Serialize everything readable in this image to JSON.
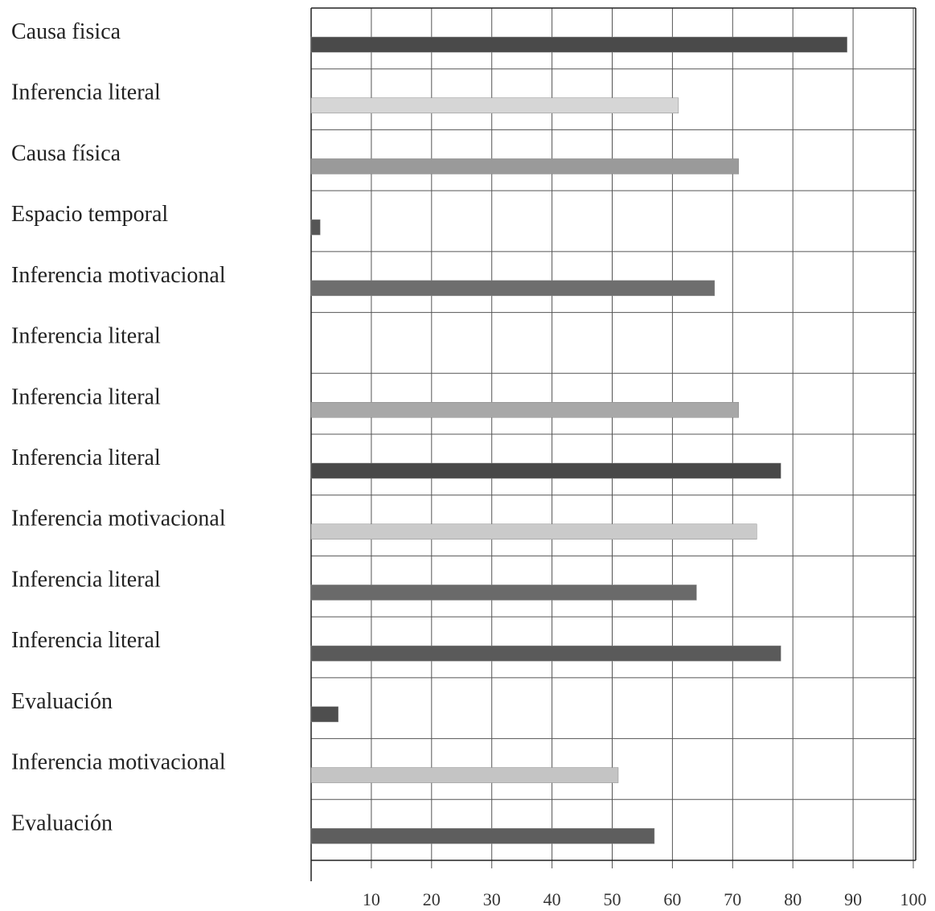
{
  "chart_data": {
    "type": "bar",
    "orientation": "horizontal",
    "title": "",
    "xlabel": "",
    "ylabel": "",
    "xlim": [
      0,
      100
    ],
    "x_ticks": [
      10,
      20,
      30,
      40,
      50,
      60,
      70,
      80,
      90,
      100
    ],
    "grid": true,
    "legend": "none",
    "categories": [
      "Causa fisica",
      "Inferencia literal",
      "Causa física",
      "Espacio temporal",
      "Inferencia motivacional",
      "Inferencia literal",
      "Inferencia literal",
      "Inferencia literal",
      "Inferencia motivacional",
      "Inferencia literal",
      "Inferencia literal",
      "Evaluación",
      "Inferencia motivacional",
      "Evaluación"
    ],
    "values": [
      89,
      61,
      71,
      1.5,
      67,
      0,
      71,
      78,
      74,
      64,
      78,
      4.5,
      51,
      57
    ],
    "bar_colors": [
      "#4a4a4a",
      "#d6d6d6",
      "#9a9a9a",
      "#555555",
      "#6e6e6e",
      "#b0b0b0",
      "#a8a8a8",
      "#484848",
      "#cacaca",
      "#6a6a6a",
      "#5a5a5a",
      "#4e4e4e",
      "#c4c4c4",
      "#5e5e5e"
    ]
  }
}
